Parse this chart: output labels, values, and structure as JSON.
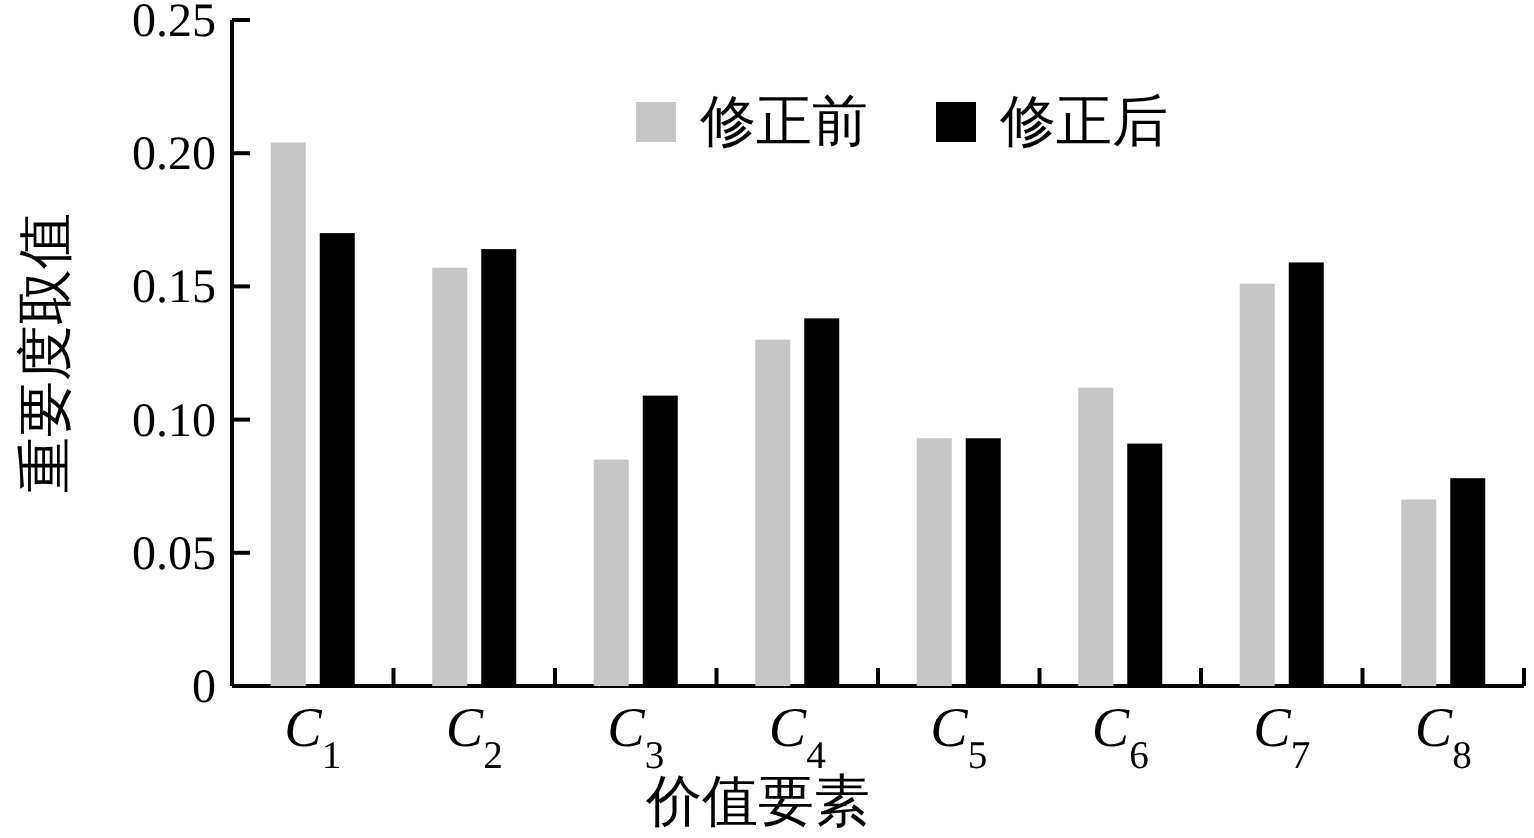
{
  "chart_data": {
    "type": "bar",
    "xlabel": "价值要素",
    "ylabel": "重要度取值",
    "categories": [
      "*C*$_{1}$",
      "*C*$_{2}$",
      "*C*$_{3}$",
      "*C*$_{4}$",
      "*C*$_{5}$",
      "*C*$_{6}$",
      "*C*$_{7}$",
      "*C*$_{8}$"
    ],
    "series": [
      {
        "name": "修正前",
        "color": "#c6c6c6",
        "values": [
          0.204,
          0.157,
          0.085,
          0.13,
          0.093,
          0.112,
          0.151,
          0.07
        ]
      },
      {
        "name": "修正后",
        "color": "#000000",
        "values": [
          0.17,
          0.164,
          0.109,
          0.138,
          0.093,
          0.091,
          0.159,
          0.078
        ]
      }
    ],
    "ylim": [
      0,
      0.25
    ],
    "yticks": [
      {
        "value": 0,
        "label": "0"
      },
      {
        "value": 0.05,
        "label": "0.05"
      },
      {
        "value": 0.1,
        "label": "0.10"
      },
      {
        "value": 0.15,
        "label": "0.15"
      },
      {
        "value": 0.2,
        "label": "0.20"
      },
      {
        "value": 0.25,
        "label": "0.25"
      }
    ],
    "legend": "top right"
  }
}
